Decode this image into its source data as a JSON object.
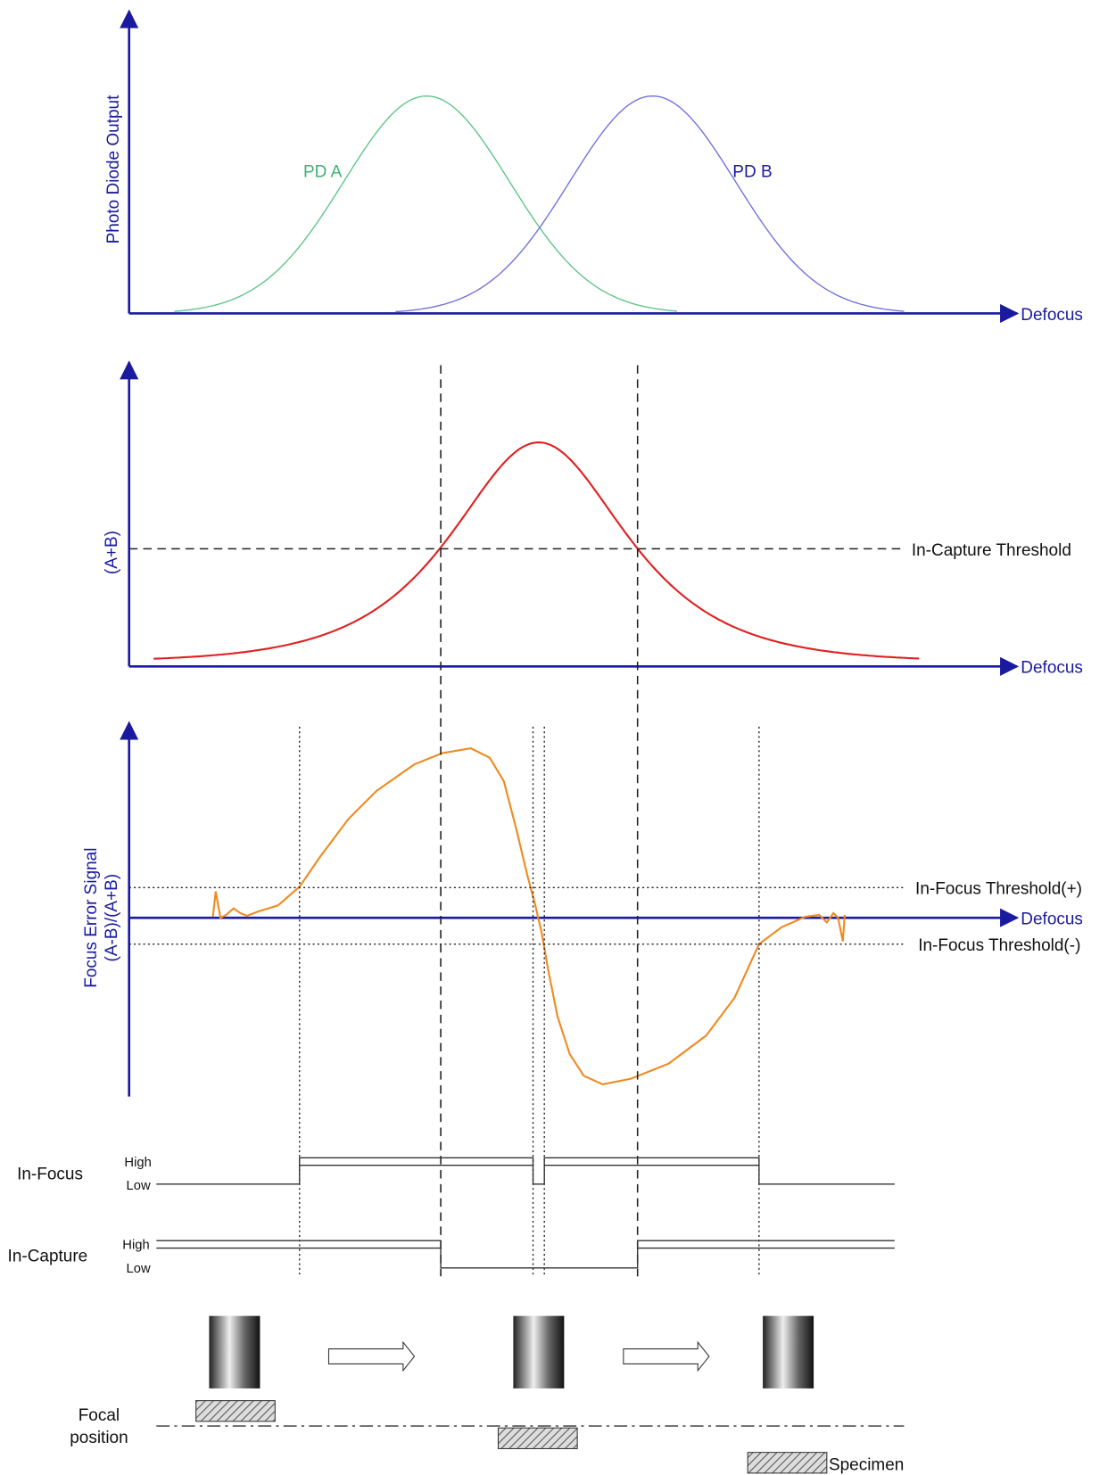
{
  "photodiode": {
    "y_axis": "Photo Diode Output",
    "x_axis": "Defocus",
    "curve_a": "PD A",
    "curve_b": "PD B"
  },
  "sum": {
    "y_axis": "(A+B)",
    "x_axis": "Defocus",
    "threshold": "In-Capture Threshold"
  },
  "error": {
    "y_axis": [
      "Focus Error Signal",
      "(A-B)/(A+B)"
    ],
    "x_axis": "Defocus",
    "threshold_plus": "In-Focus Threshold(+)",
    "threshold_minus": "In-Focus Threshold(-)"
  },
  "in_focus": {
    "label": "In-Focus",
    "high": "High",
    "low": "Low"
  },
  "in_capture": {
    "label": "In-Capture",
    "high": "High",
    "low": "Low"
  },
  "focal": {
    "label": [
      "Focal",
      "position"
    ],
    "specimen": "Specimen"
  }
}
